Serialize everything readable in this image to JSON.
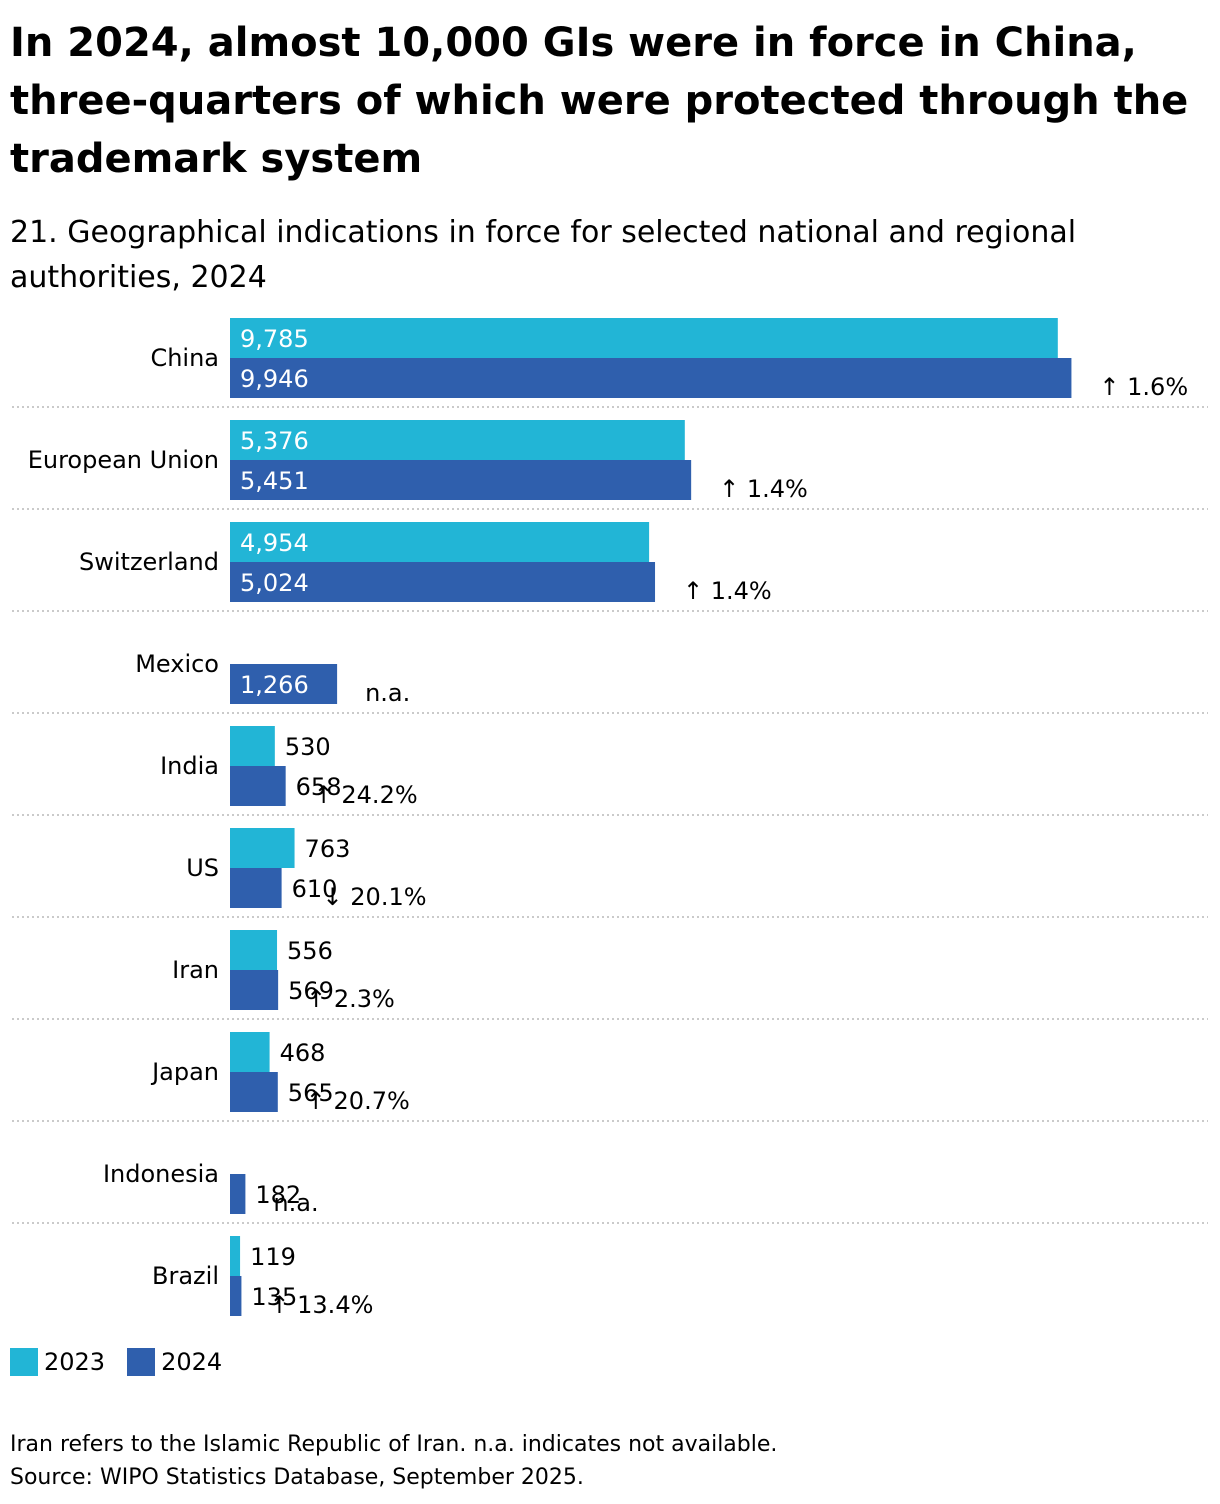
{
  "title": "In 2024, almost 10,000 GIs were in force in China, three-quarters of which were protected through the trademark system",
  "subtitle": "21. Geographical indications in force for selected national and regional authorities, 2024",
  "legend": [
    {
      "label": "2023",
      "color": "#22b5d6"
    },
    {
      "label": "2024",
      "color": "#2f5fad"
    }
  ],
  "footnotes": {
    "note": "Iran refers to the Islamic Republic of Iran. n.a. indicates not available.",
    "source": "Source: WIPO Statistics Database, September 2025."
  },
  "chart_data": {
    "type": "bar",
    "orientation": "horizontal",
    "categories": [
      "China",
      "European Union",
      "Switzerland",
      "Mexico",
      "India",
      "US",
      "Iran",
      "Japan",
      "Indonesia",
      "Brazil"
    ],
    "series": [
      {
        "name": "2023",
        "color": "#22b5d6",
        "values": [
          9785,
          5376,
          4954,
          null,
          530,
          763,
          556,
          468,
          null,
          119
        ]
      },
      {
        "name": "2024",
        "color": "#2f5fad",
        "values": [
          9946,
          5451,
          5024,
          1266,
          658,
          610,
          569,
          565,
          182,
          135
        ]
      }
    ],
    "value_labels": {
      "2023": [
        "9,785",
        "5,376",
        "4,954",
        "",
        "530",
        "763",
        "556",
        "468",
        "",
        "119"
      ],
      "2024": [
        "9,946",
        "5,451",
        "5,024",
        "1,266",
        "658",
        "610",
        "569",
        "565",
        "182",
        "135"
      ]
    },
    "growth_labels": [
      "↑ 1.6%",
      "↑ 1.4%",
      "↑ 1.4%",
      "n.a.",
      "↑ 24.2%",
      "↓ 20.1%",
      "↑ 2.3%",
      "↑ 20.7%",
      "n.a.",
      "↑ 13.4%"
    ],
    "xlim": [
      0,
      10000
    ],
    "grid": false,
    "legend_position": "bottom-left"
  }
}
